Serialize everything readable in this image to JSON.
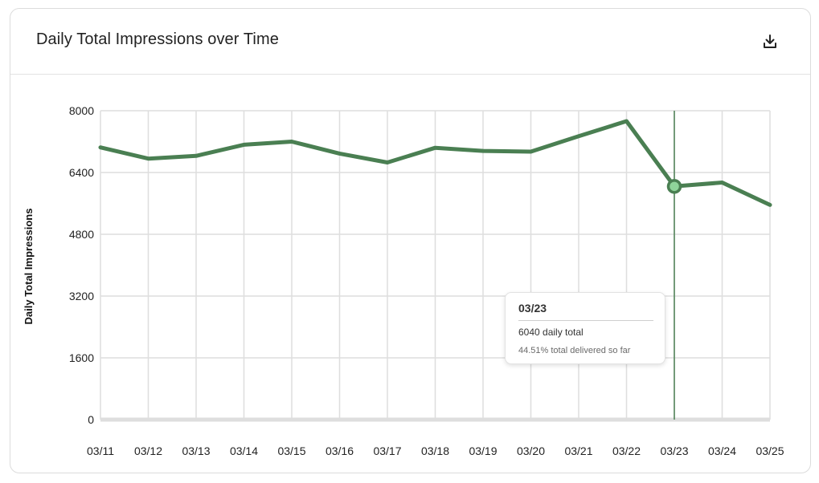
{
  "card": {
    "title": "Daily Total Impressions over Time",
    "download_icon": "download-icon"
  },
  "tooltip": {
    "date": "03/23",
    "total_text": "6040 daily total",
    "delivered_text": "44.51% total delivered so far"
  },
  "colors": {
    "line": "#4a7f52",
    "marker_fill": "#8fd49a",
    "grid": "#dedede",
    "axis": "#dedede"
  },
  "chart_data": {
    "type": "line",
    "title": "",
    "xlabel": "",
    "ylabel": "Daily Total Impressions",
    "categories": [
      "03/11",
      "03/12",
      "03/13",
      "03/14",
      "03/15",
      "03/16",
      "03/17",
      "03/18",
      "03/19",
      "03/20",
      "03/21",
      "03/22",
      "03/23",
      "03/24",
      "03/25"
    ],
    "series": [
      {
        "values": [
          7050,
          6760,
          6830,
          7120,
          7200,
          6890,
          6660,
          7040,
          6960,
          6940,
          7340,
          7730,
          6040,
          6140,
          5560
        ]
      }
    ],
    "ylim": [
      0,
      8000
    ],
    "yticks": [
      "0",
      "1600",
      "3200",
      "4800",
      "6400",
      "8000"
    ],
    "grid": true,
    "legend": "none",
    "highlighted_category": "03/23"
  }
}
